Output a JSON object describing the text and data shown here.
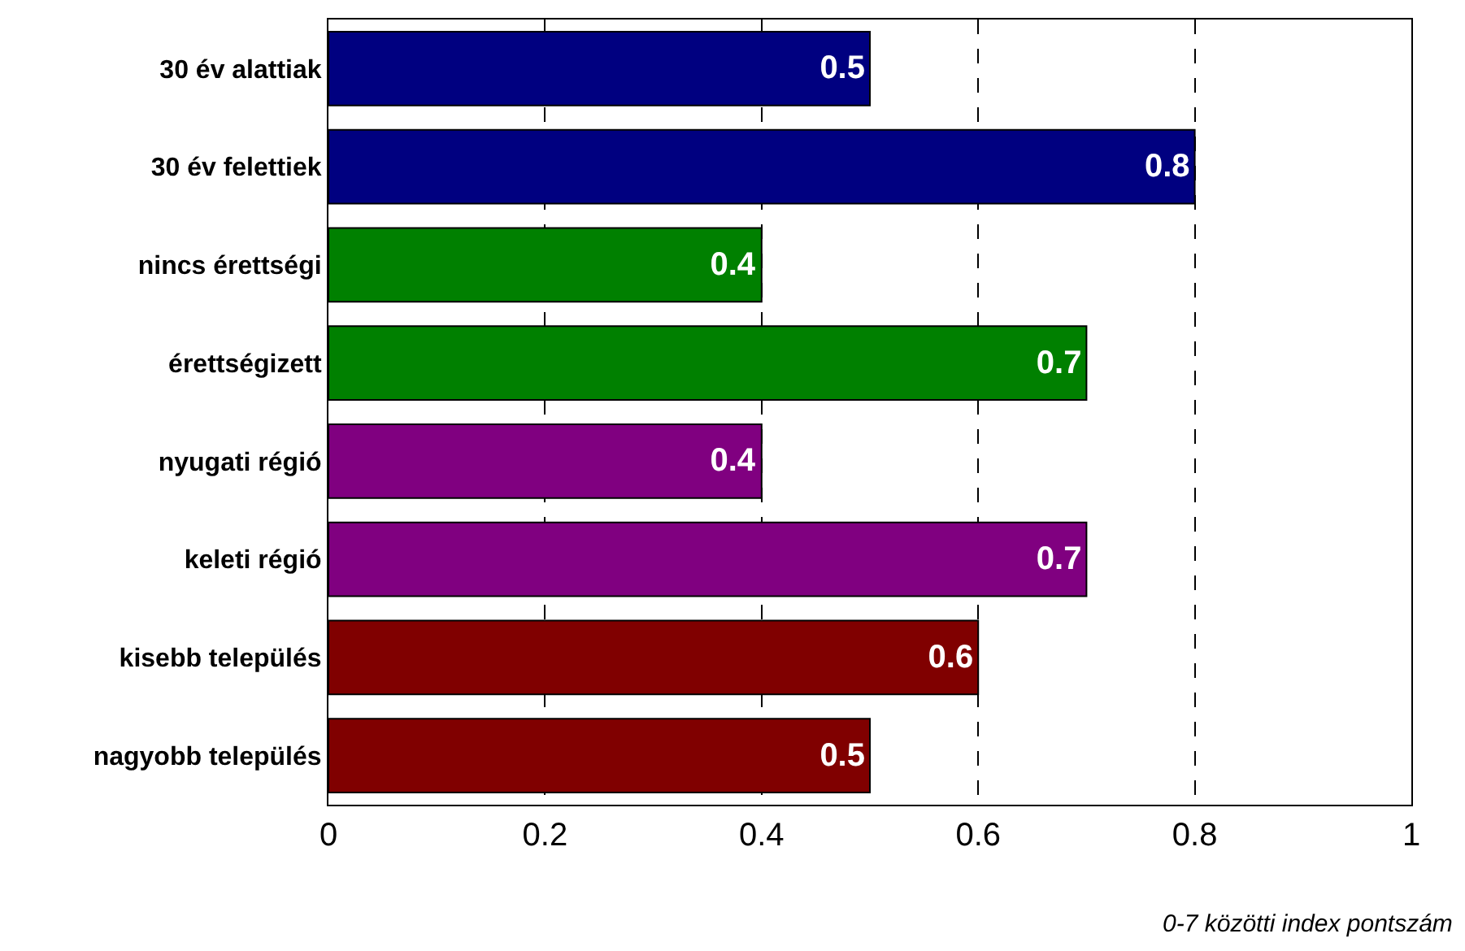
{
  "chart_data": {
    "type": "bar",
    "orientation": "horizontal",
    "categories": [
      "30 év alattiak",
      "30 év felettiek",
      "nincs érettségi",
      "érettségizett",
      "nyugati régió",
      "keleti régió",
      "kisebb település",
      "nagyobb település"
    ],
    "values": [
      0.5,
      0.8,
      0.4,
      0.7,
      0.4,
      0.7,
      0.6,
      0.5
    ],
    "colors": [
      "#000080",
      "#000080",
      "#008000",
      "#008000",
      "#800080",
      "#800080",
      "#800000",
      "#800000"
    ],
    "xlim": [
      0,
      1
    ],
    "xticks": [
      0,
      0.2,
      0.4,
      0.6,
      0.8,
      1
    ],
    "grid": "x",
    "data_labels": true,
    "xlabel": "0-7 közötti index pontszám"
  }
}
